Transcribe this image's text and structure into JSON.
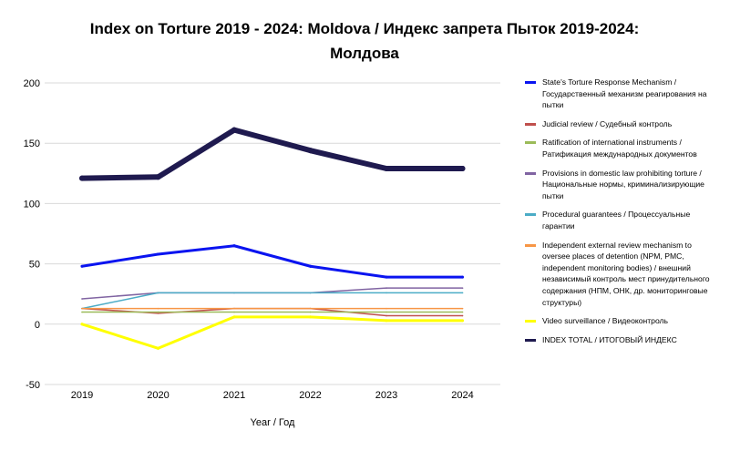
{
  "title": {
    "line1": "Index on Torture 2019 - 2024: Moldova / Индекс запрета Пыток 2019-2024:",
    "line2": "Молдова"
  },
  "chart_data": {
    "type": "line",
    "title": "Index on Torture 2019 - 2024: Moldova / Индекс запрета Пыток 2019-2024: Молдова",
    "xlabel": "Year / Год",
    "ylabel": "",
    "categories": [
      "2019",
      "2020",
      "2021",
      "2022",
      "2023",
      "2024"
    ],
    "ylim": [
      -50,
      200
    ],
    "yticks": [
      -50,
      0,
      50,
      100,
      150,
      200
    ],
    "grid": true,
    "legend_position": "right",
    "series": [
      {
        "name": "State's Torture Response Mechanism / Государственный механизм реагирования на пытки",
        "color": "#0a14f0",
        "width": 3,
        "values": [
          48,
          58,
          65,
          48,
          39,
          39
        ]
      },
      {
        "name": "Judicial review / Судебный контроль",
        "color": "#c0504d",
        "width": 1.5,
        "values": [
          13,
          9,
          13,
          13,
          7,
          7
        ]
      },
      {
        "name": "Ratification of international instruments / Ратификация международных документов",
        "color": "#9bbb59",
        "width": 1.5,
        "values": [
          10,
          10,
          10,
          10,
          10,
          10
        ]
      },
      {
        "name": "Provisions in domestic law prohibiting torture / Национальные нормы, криминализирующие пытки",
        "color": "#8064a2",
        "width": 1.5,
        "values": [
          21,
          26,
          26,
          26,
          30,
          30
        ]
      },
      {
        "name": "Procedural guarantees / Процессуальные гарантии",
        "color": "#4bacc6",
        "width": 1.5,
        "values": [
          13,
          26,
          26,
          26,
          26,
          26
        ]
      },
      {
        "name": "Independent external review mechanism to oversee places of detention (NPM, PMC, independent monitoring bodies) / внешний независимый контроль мест принудительного содержания (НПМ, ОНК, др. мониторинговые структуры)",
        "color": "#f79646",
        "width": 1.5,
        "values": [
          13,
          13,
          13,
          13,
          13,
          13
        ]
      },
      {
        "name": "Video surveillance / Видеоконтроль",
        "color": "#ffff00",
        "width": 3,
        "values": [
          0,
          -20,
          6,
          6,
          3,
          3
        ]
      },
      {
        "name": "INDEX TOTAL / ИТОГОВЫЙ ИНДЕКС",
        "color": "#1f1a4f",
        "width": 6,
        "values": [
          121,
          122,
          161,
          144,
          129,
          129
        ]
      }
    ]
  }
}
